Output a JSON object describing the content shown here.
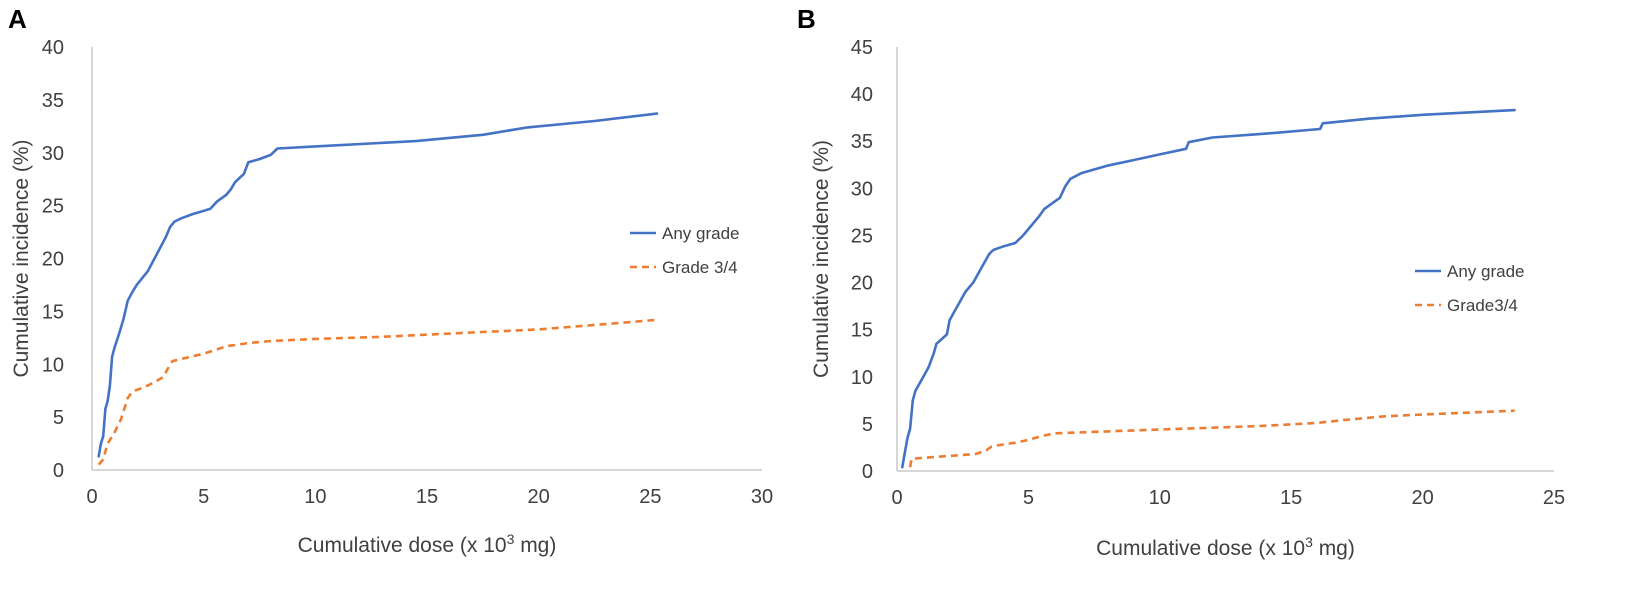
{
  "chart_data": [
    {
      "panel": "A",
      "type": "line",
      "title": "",
      "xlabel": "Cumulative dose (x 10",
      "xlabel_sup": "3",
      "xlabel_end": " mg)",
      "ylabel": "Cumulative incidence (%)",
      "xlim": [
        0,
        30
      ],
      "ylim": [
        0,
        40
      ],
      "xticks": [
        0,
        5,
        10,
        15,
        20,
        25,
        30
      ],
      "yticks": [
        0,
        5,
        10,
        15,
        20,
        25,
        30,
        35,
        40
      ],
      "legend_position": "right",
      "series": [
        {
          "name": "Any grade",
          "style": "solid",
          "color": "#4472C4",
          "x": [
            0.3,
            0.4,
            0.5,
            0.6,
            0.7,
            0.8,
            0.9,
            1.0,
            1.2,
            1.4,
            1.6,
            1.8,
            2.0,
            2.5,
            3.0,
            3.3,
            3.4,
            3.5,
            3.7,
            4.0,
            4.5,
            5.0,
            5.3,
            5.6,
            6.0,
            6.2,
            6.4,
            6.6,
            6.8,
            7.0,
            7.5,
            8.0,
            8.3,
            10.0,
            14.5,
            17.5,
            19.5,
            22.5,
            25.3
          ],
          "y": [
            1.3,
            2.5,
            3.2,
            5.8,
            6.5,
            8.0,
            10.7,
            11.5,
            12.8,
            14.2,
            16.0,
            16.8,
            17.5,
            18.8,
            20.8,
            22.0,
            22.5,
            23.0,
            23.5,
            23.8,
            24.2,
            24.5,
            24.7,
            25.4,
            26.0,
            26.5,
            27.2,
            27.6,
            28.0,
            29.1,
            29.4,
            29.8,
            30.4,
            30.6,
            31.1,
            31.7,
            32.4,
            33.0,
            33.7
          ]
        },
        {
          "name": "Grade 3/4",
          "style": "dashed",
          "color": "#ED7D31",
          "x": [
            0.3,
            0.5,
            0.7,
            1.0,
            1.3,
            1.6,
            1.8,
            2.3,
            2.8,
            3.2,
            3.4,
            3.6,
            4.2,
            5.0,
            5.6,
            6.0,
            7.0,
            8.0,
            10.0,
            13.0,
            17.0,
            20.0,
            23.0,
            25.3
          ],
          "y": [
            0.5,
            1.0,
            2.5,
            3.5,
            4.8,
            6.8,
            7.4,
            7.8,
            8.3,
            8.8,
            9.6,
            10.3,
            10.6,
            11.0,
            11.4,
            11.7,
            12.0,
            12.2,
            12.4,
            12.6,
            13.0,
            13.3,
            13.8,
            14.2
          ]
        }
      ]
    },
    {
      "panel": "B",
      "type": "line",
      "title": "",
      "xlabel": "Cumulative dose (x 10",
      "xlabel_sup": "3",
      "xlabel_end": " mg)",
      "ylabel": "Cumulative incidence (%)",
      "xlim": [
        0,
        25
      ],
      "ylim": [
        0,
        45
      ],
      "xticks": [
        0,
        5,
        10,
        15,
        20,
        25
      ],
      "yticks": [
        0,
        5,
        10,
        15,
        20,
        25,
        30,
        35,
        40,
        45
      ],
      "legend_position": "right",
      "series": [
        {
          "name": "Any grade",
          "style": "solid",
          "color": "#4472C4",
          "x": [
            0.2,
            0.3,
            0.4,
            0.5,
            0.6,
            0.7,
            0.8,
            1.0,
            1.2,
            1.4,
            1.5,
            1.7,
            1.9,
            2.0,
            2.2,
            2.4,
            2.6,
            2.9,
            3.1,
            3.3,
            3.4,
            3.5,
            3.6,
            3.7,
            4.0,
            4.5,
            4.8,
            5.1,
            5.4,
            5.6,
            5.8,
            6.2,
            6.4,
            6.6,
            7.0,
            8.0,
            9.0,
            10.0,
            11.0,
            11.1,
            12.0,
            14.0,
            16.1,
            16.2,
            18.0,
            20.0,
            23.5
          ],
          "y": [
            0.4,
            2.0,
            3.5,
            4.5,
            7.5,
            8.5,
            9.0,
            10.0,
            11.0,
            12.5,
            13.5,
            14.0,
            14.5,
            16.0,
            17.0,
            18.0,
            19.0,
            20.0,
            21.0,
            22.0,
            22.5,
            23.0,
            23.3,
            23.5,
            23.8,
            24.2,
            25.0,
            26.0,
            27.0,
            27.8,
            28.2,
            29.0,
            30.2,
            31.0,
            31.6,
            32.4,
            33.0,
            33.6,
            34.2,
            34.9,
            35.4,
            35.8,
            36.3,
            36.9,
            37.4,
            37.8,
            38.3
          ]
        },
        {
          "name": "Grade3/4",
          "style": "dashed",
          "color": "#ED7D31",
          "x": [
            0.5,
            0.55,
            1.0,
            2.0,
            3.0,
            3.4,
            3.6,
            4.0,
            4.5,
            5.0,
            5.5,
            6.0,
            8.0,
            10.0,
            12.0,
            14.0,
            16.0,
            17.0,
            18.5,
            20.0,
            23.5
          ],
          "y": [
            0.4,
            1.3,
            1.4,
            1.6,
            1.8,
            2.2,
            2.6,
            2.8,
            3.0,
            3.3,
            3.7,
            4.0,
            4.2,
            4.4,
            4.6,
            4.8,
            5.1,
            5.4,
            5.8,
            6.0,
            6.4
          ]
        }
      ]
    }
  ]
}
